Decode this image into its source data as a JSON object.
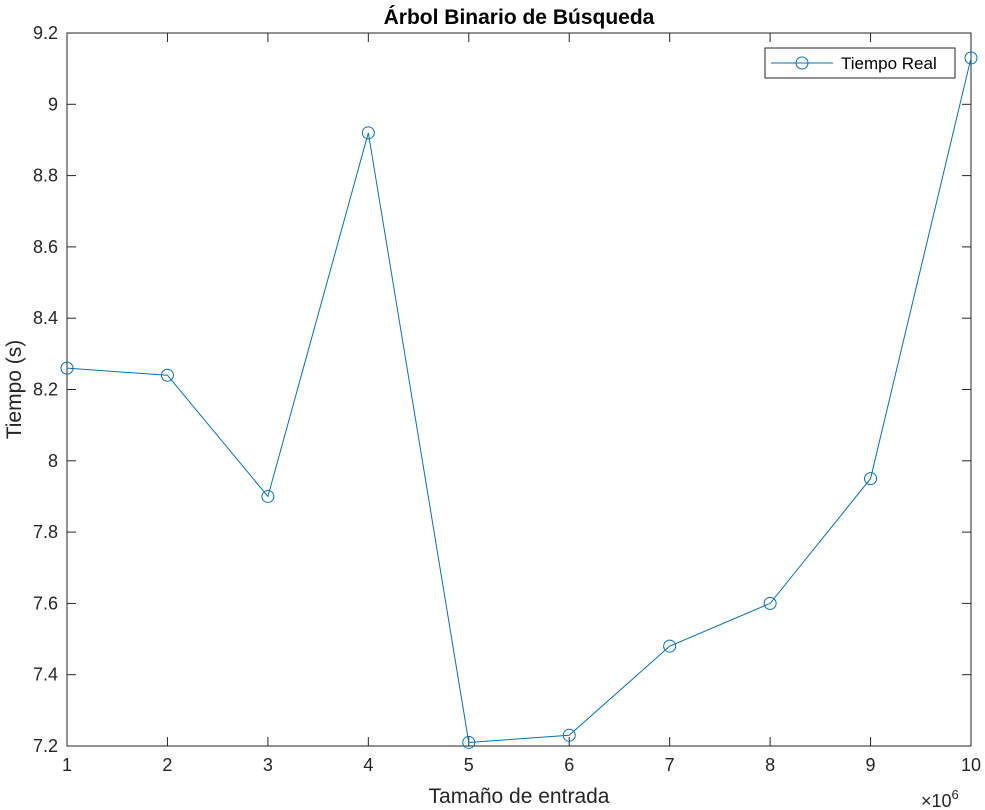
{
  "chart_data": {
    "type": "line",
    "title": "Árbol Binario de Búsqueda",
    "xlabel": "Tamaño de entrada",
    "ylabel": "Tiempo (s)",
    "x_exponent_base": "×10",
    "x_exponent_power": "6",
    "xlim": [
      1,
      10
    ],
    "ylim": [
      7.2,
      9.2
    ],
    "x_ticks": [
      "1",
      "2",
      "3",
      "4",
      "5",
      "6",
      "7",
      "8",
      "9",
      "10"
    ],
    "y_ticks": [
      "7.2",
      "7.4",
      "7.6",
      "7.8",
      "8",
      "8.2",
      "8.4",
      "8.6",
      "8.8",
      "9",
      "9.2"
    ],
    "grid": false,
    "legend_position": "top-right",
    "series": [
      {
        "name": "Tiempo Real",
        "color": "#0072BD",
        "marker": "circle-open",
        "x": [
          1,
          2,
          3,
          4,
          5,
          6,
          7,
          8,
          9,
          10
        ],
        "y": [
          8.26,
          8.24,
          7.9,
          8.92,
          7.21,
          7.23,
          7.48,
          7.6,
          7.95,
          9.13
        ]
      }
    ]
  }
}
